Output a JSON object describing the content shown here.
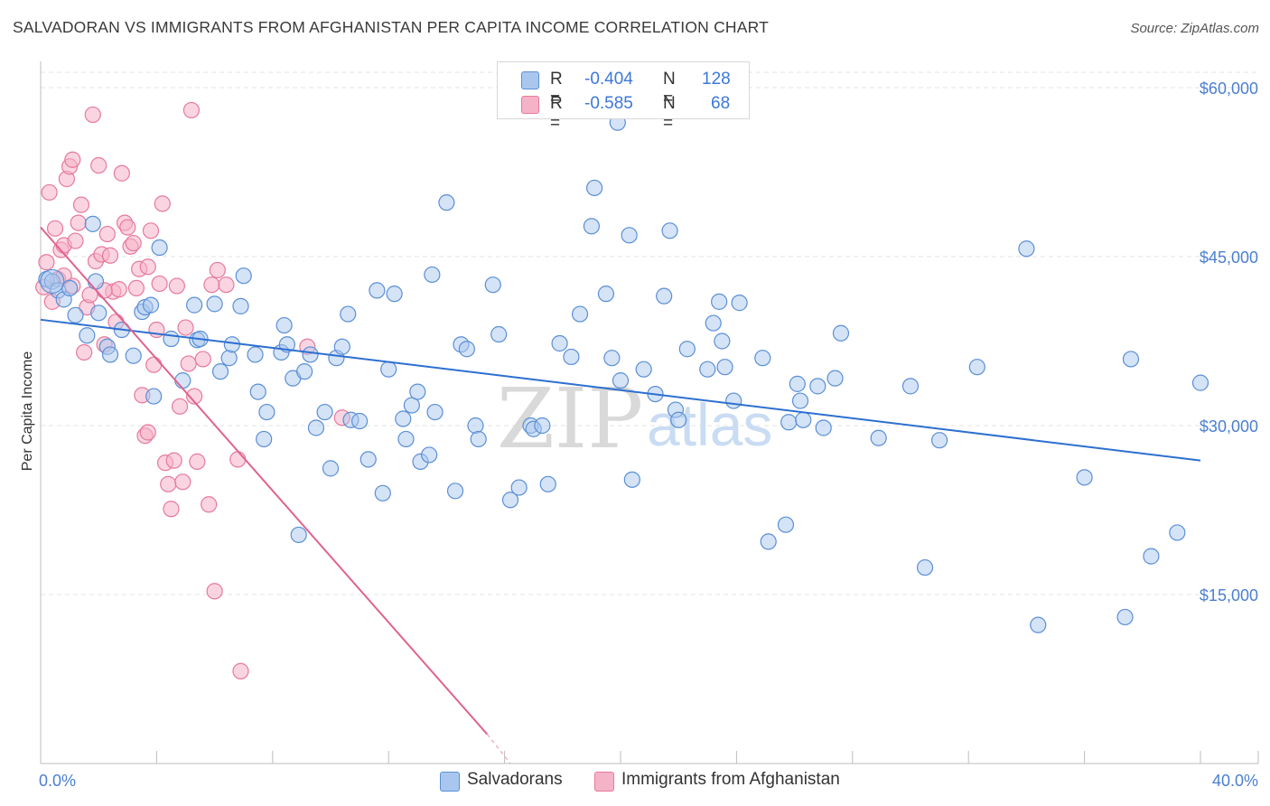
{
  "title": "SALVADORAN VS IMMIGRANTS FROM AFGHANISTAN PER CAPITA INCOME CORRELATION CHART",
  "source": "Source: ZipAtlas.com",
  "watermark": {
    "zip": "ZIP",
    "atlas": "atlas"
  },
  "colors": {
    "blue_fill": "#a9c7ee",
    "blue_stroke": "#5b8fd6",
    "blue_line": "#2d6fd0",
    "pink_fill": "#f5b3c8",
    "pink_stroke": "#e7799d",
    "pink_line": "#e0628f",
    "grid": "#e3e3e3",
    "tick_text": "#4a7fd1"
  },
  "legend": {
    "rows": [
      {
        "r_label": "R =",
        "r_value": "-0.404",
        "n_label": "N =",
        "n_value": "128"
      },
      {
        "r_label": "R =",
        "r_value": "-0.585",
        "n_label": "N =",
        "n_value": "68"
      }
    ]
  },
  "bottom_legend": {
    "salvadorans": "Salvadorans",
    "afghan": "Immigrants from Afghanistan"
  },
  "chart_data": {
    "type": "scatter",
    "title": "SALVADORAN VS IMMIGRANTS FROM AFGHANISTAN PER CAPITA INCOME CORRELATION CHART",
    "ylabel": "Per Capita Income",
    "xlabel": "",
    "xlim": [
      0,
      40
    ],
    "ylim": [
      0,
      62000
    ],
    "x_tick_labels": [
      "0.0%",
      "40.0%"
    ],
    "y_ticks": [
      {
        "value": 15000,
        "label": "$15,000"
      },
      {
        "value": 30000,
        "label": "$30,000"
      },
      {
        "value": 45000,
        "label": "$45,000"
      },
      {
        "value": 60000,
        "label": "$60,000"
      }
    ],
    "grid": true,
    "series": [
      {
        "name": "Salvadorans",
        "color": "blue",
        "R": -0.404,
        "N": 128,
        "trend": {
          "x0": 0.0,
          "y0": 39400,
          "x1": 40.0,
          "y1": 26900
        },
        "points": [
          [
            0.2,
            43000
          ],
          [
            0.4,
            42800
          ],
          [
            0.6,
            42000
          ],
          [
            0.8,
            41200
          ],
          [
            1.0,
            42200
          ],
          [
            1.2,
            39800
          ],
          [
            1.6,
            38000
          ],
          [
            1.8,
            47900
          ],
          [
            1.9,
            42800
          ],
          [
            2.0,
            40000
          ],
          [
            2.3,
            37000
          ],
          [
            2.4,
            36300
          ],
          [
            2.8,
            38500
          ],
          [
            3.2,
            36200
          ],
          [
            3.5,
            40100
          ],
          [
            3.6,
            40500
          ],
          [
            3.8,
            40700
          ],
          [
            3.9,
            32600
          ],
          [
            4.1,
            45800
          ],
          [
            4.5,
            37700
          ],
          [
            4.9,
            34000
          ],
          [
            5.3,
            40700
          ],
          [
            5.4,
            37600
          ],
          [
            5.5,
            37700
          ],
          [
            6.0,
            40800
          ],
          [
            6.2,
            34800
          ],
          [
            6.5,
            36000
          ],
          [
            6.6,
            37200
          ],
          [
            6.9,
            40600
          ],
          [
            7.0,
            43300
          ],
          [
            7.4,
            36300
          ],
          [
            7.5,
            33000
          ],
          [
            7.7,
            28800
          ],
          [
            7.8,
            31200
          ],
          [
            8.3,
            36500
          ],
          [
            8.4,
            38900
          ],
          [
            8.5,
            37200
          ],
          [
            8.7,
            34200
          ],
          [
            8.9,
            20300
          ],
          [
            9.1,
            34800
          ],
          [
            9.3,
            36300
          ],
          [
            9.5,
            29800
          ],
          [
            9.8,
            31200
          ],
          [
            10.0,
            26200
          ],
          [
            10.2,
            36000
          ],
          [
            10.4,
            37000
          ],
          [
            10.6,
            39900
          ],
          [
            10.7,
            30500
          ],
          [
            11.0,
            30400
          ],
          [
            11.3,
            27000
          ],
          [
            11.6,
            42000
          ],
          [
            11.8,
            24000
          ],
          [
            12.0,
            35000
          ],
          [
            12.2,
            41700
          ],
          [
            12.5,
            30600
          ],
          [
            12.6,
            28800
          ],
          [
            12.8,
            31800
          ],
          [
            13.0,
            33000
          ],
          [
            13.1,
            26800
          ],
          [
            13.4,
            27400
          ],
          [
            13.5,
            43400
          ],
          [
            13.6,
            31200
          ],
          [
            14.0,
            49800
          ],
          [
            14.3,
            24200
          ],
          [
            14.5,
            37200
          ],
          [
            14.7,
            36800
          ],
          [
            15.0,
            30000
          ],
          [
            15.1,
            28800
          ],
          [
            15.6,
            42500
          ],
          [
            15.8,
            38100
          ],
          [
            16.2,
            23400
          ],
          [
            16.5,
            24500
          ],
          [
            16.9,
            30000
          ],
          [
            17.0,
            29700
          ],
          [
            17.3,
            30000
          ],
          [
            17.5,
            24800
          ],
          [
            17.9,
            37300
          ],
          [
            18.3,
            36100
          ],
          [
            18.6,
            39900
          ],
          [
            19.0,
            47700
          ],
          [
            19.1,
            51100
          ],
          [
            19.5,
            41700
          ],
          [
            19.7,
            36000
          ],
          [
            19.9,
            56900
          ],
          [
            20.0,
            34000
          ],
          [
            20.3,
            46900
          ],
          [
            20.4,
            25200
          ],
          [
            20.8,
            35000
          ],
          [
            21.2,
            32800
          ],
          [
            21.5,
            41500
          ],
          [
            21.7,
            47300
          ],
          [
            21.9,
            31400
          ],
          [
            22.0,
            30500
          ],
          [
            22.3,
            36800
          ],
          [
            23.0,
            35000
          ],
          [
            23.2,
            39100
          ],
          [
            23.4,
            41000
          ],
          [
            23.5,
            37500
          ],
          [
            23.6,
            35200
          ],
          [
            23.9,
            32200
          ],
          [
            24.1,
            40900
          ],
          [
            24.9,
            36000
          ],
          [
            25.1,
            19700
          ],
          [
            25.7,
            21200
          ],
          [
            25.8,
            30300
          ],
          [
            26.1,
            33700
          ],
          [
            26.2,
            32200
          ],
          [
            26.3,
            30500
          ],
          [
            26.8,
            33500
          ],
          [
            27.0,
            29800
          ],
          [
            27.4,
            34200
          ],
          [
            27.6,
            38200
          ],
          [
            28.9,
            28900
          ],
          [
            30.0,
            33500
          ],
          [
            30.5,
            17400
          ],
          [
            31.0,
            28700
          ],
          [
            32.3,
            35200
          ],
          [
            34.0,
            45700
          ],
          [
            34.4,
            12300
          ],
          [
            36.0,
            25400
          ],
          [
            37.4,
            13000
          ],
          [
            37.6,
            35900
          ],
          [
            38.3,
            18400
          ],
          [
            39.2,
            20500
          ],
          [
            40.0,
            33800
          ]
        ]
      },
      {
        "name": "Immigrants from Afghanistan",
        "color": "pink",
        "R": -0.585,
        "N": 68,
        "trend": {
          "x0": 0.0,
          "y0": 47600,
          "x1": 15.4,
          "y1": 2600,
          "dash_to_x": 16.2,
          "dash_to_y": 0
        },
        "points": [
          [
            0.1,
            42300
          ],
          [
            0.2,
            44500
          ],
          [
            0.3,
            50700
          ],
          [
            0.4,
            41000
          ],
          [
            0.5,
            47500
          ],
          [
            0.6,
            43000
          ],
          [
            0.7,
            45600
          ],
          [
            0.8,
            46000
          ],
          [
            0.9,
            51900
          ],
          [
            1.0,
            53000
          ],
          [
            1.1,
            53600
          ],
          [
            1.2,
            46400
          ],
          [
            1.3,
            48000
          ],
          [
            1.4,
            49600
          ],
          [
            1.5,
            36500
          ],
          [
            1.6,
            40500
          ],
          [
            1.7,
            41600
          ],
          [
            1.8,
            57600
          ],
          [
            1.9,
            44600
          ],
          [
            2.0,
            53100
          ],
          [
            2.1,
            45200
          ],
          [
            2.2,
            37200
          ],
          [
            2.3,
            47000
          ],
          [
            2.4,
            45100
          ],
          [
            2.5,
            41900
          ],
          [
            2.6,
            39200
          ],
          [
            2.7,
            42100
          ],
          [
            2.8,
            52400
          ],
          [
            2.9,
            48000
          ],
          [
            3.0,
            47600
          ],
          [
            3.1,
            45900
          ],
          [
            3.2,
            46200
          ],
          [
            3.3,
            42200
          ],
          [
            3.4,
            43900
          ],
          [
            3.5,
            32700
          ],
          [
            3.6,
            29100
          ],
          [
            3.7,
            29400
          ],
          [
            3.8,
            47300
          ],
          [
            3.9,
            35400
          ],
          [
            4.0,
            38500
          ],
          [
            4.1,
            42600
          ],
          [
            4.2,
            49700
          ],
          [
            4.3,
            26700
          ],
          [
            4.4,
            24800
          ],
          [
            4.5,
            22600
          ],
          [
            4.6,
            26900
          ],
          [
            4.7,
            42400
          ],
          [
            4.8,
            31700
          ],
          [
            4.9,
            25000
          ],
          [
            5.0,
            38700
          ],
          [
            5.1,
            35500
          ],
          [
            5.2,
            58000
          ],
          [
            5.3,
            32600
          ],
          [
            5.4,
            26800
          ],
          [
            5.6,
            35900
          ],
          [
            5.8,
            23000
          ],
          [
            5.9,
            42500
          ],
          [
            6.0,
            15300
          ],
          [
            6.1,
            43800
          ],
          [
            6.4,
            42500
          ],
          [
            6.8,
            27000
          ],
          [
            6.9,
            8200
          ],
          [
            2.2,
            42000
          ],
          [
            1.1,
            42400
          ],
          [
            0.8,
            43300
          ],
          [
            9.2,
            37000
          ],
          [
            10.4,
            30700
          ],
          [
            3.7,
            44100
          ]
        ]
      }
    ]
  }
}
